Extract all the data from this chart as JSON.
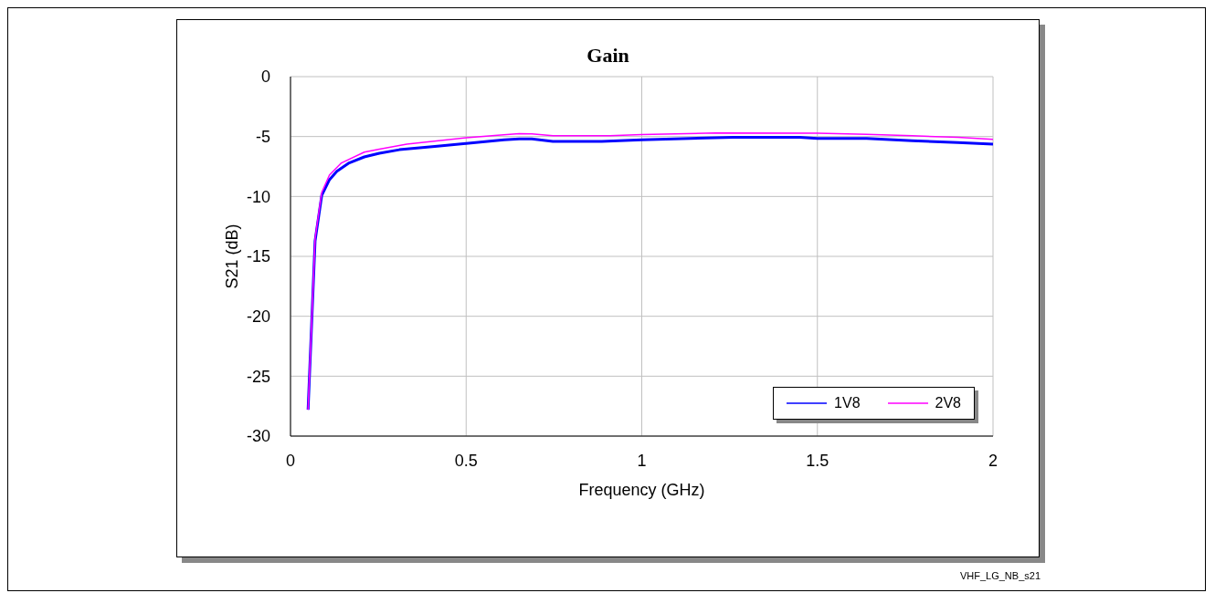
{
  "chart_data": {
    "type": "line",
    "title": "Gain",
    "xlabel": "Frequency (GHz)",
    "ylabel": "S21 (dB)",
    "xlim": [
      0,
      2
    ],
    "xticks": [
      0,
      0.5,
      1,
      1.5,
      2
    ],
    "ylim": [
      -30,
      0
    ],
    "yticks": [
      -30,
      -25,
      -20,
      -15,
      -10,
      -5,
      0
    ],
    "grid": true,
    "legend": "bottom right",
    "marker": "none",
    "line_style": "solid",
    "annotations": [
      "VHF_LG_NB_s21"
    ],
    "series": [
      {
        "name": "1V8",
        "color": "#0000ff",
        "x": [
          0.05,
          0.07,
          0.089,
          0.111,
          0.132,
          0.167,
          0.21,
          0.253,
          0.31,
          0.418,
          0.5,
          0.608,
          0.651,
          0.687,
          0.747,
          0.886,
          1.0,
          1.138,
          1.26,
          1.45,
          1.5,
          1.64,
          1.77,
          1.9,
          2.0
        ],
        "values": [
          -27.8,
          -13.7,
          -9.9,
          -8.6,
          -7.9,
          -7.2,
          -6.7,
          -6.4,
          -6.1,
          -5.8,
          -5.58,
          -5.28,
          -5.2,
          -5.2,
          -5.4,
          -5.4,
          -5.28,
          -5.16,
          -5.07,
          -5.07,
          -5.16,
          -5.16,
          -5.35,
          -5.5,
          -5.63
        ]
      },
      {
        "name": "2V8",
        "color": "#ff00ff",
        "x": [
          0.05,
          0.07,
          0.089,
          0.111,
          0.145,
          0.21,
          0.253,
          0.331,
          0.5,
          0.59,
          0.651,
          0.687,
          0.747,
          0.91,
          1.0,
          1.21,
          1.5,
          1.64,
          1.77,
          1.9,
          2.0
        ],
        "values": [
          -27.8,
          -13.5,
          -9.65,
          -8.2,
          -7.2,
          -6.3,
          -6.05,
          -5.63,
          -5.1,
          -4.9,
          -4.75,
          -4.77,
          -4.93,
          -4.93,
          -4.84,
          -4.7,
          -4.72,
          -4.81,
          -4.93,
          -5.07,
          -5.23
        ]
      }
    ]
  }
}
